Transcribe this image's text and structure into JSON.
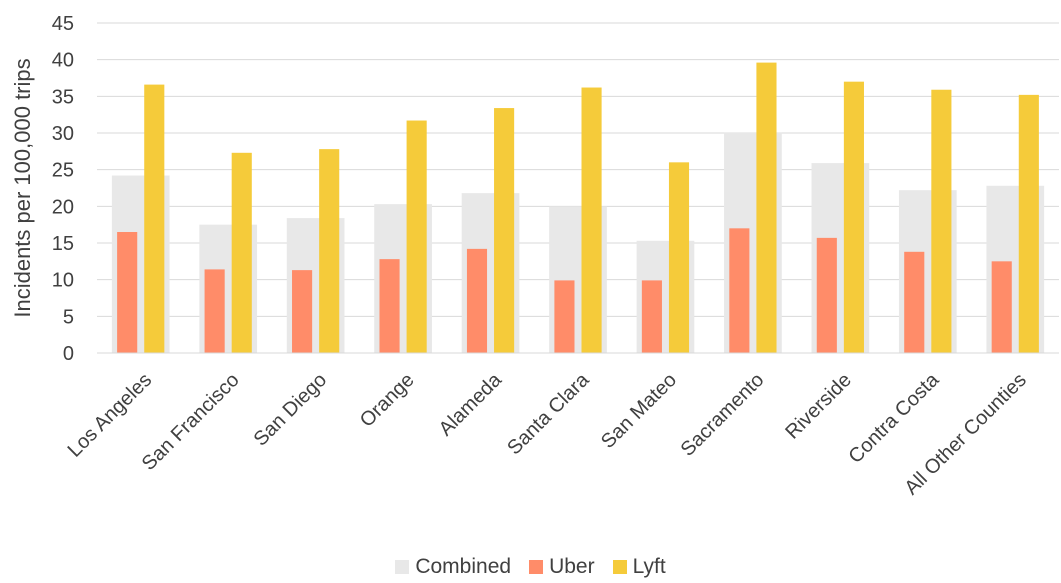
{
  "chart_data": {
    "type": "bar",
    "title": "",
    "xlabel": "",
    "ylabel": "Incidents per 100,000 trips",
    "ylim": [
      0,
      45
    ],
    "yticks": [
      0,
      5,
      10,
      15,
      20,
      25,
      30,
      35,
      40,
      45
    ],
    "grid": true,
    "legend_position": "bottom",
    "categories": [
      "Los Angeles",
      "San Francisco",
      "San Diego",
      "Orange",
      "Alameda",
      "Santa Clara",
      "San Mateo",
      "Sacramento",
      "Riverside",
      "Contra Costa",
      "All Other Counties"
    ],
    "series": [
      {
        "name": "Combined",
        "color": "#e8e8e8",
        "values": [
          24.2,
          17.5,
          18.4,
          20.3,
          21.8,
          20.0,
          15.3,
          30.1,
          25.9,
          22.2,
          22.8
        ]
      },
      {
        "name": "Uber",
        "color": "#ff8c69",
        "values": [
          16.5,
          11.4,
          11.3,
          12.8,
          14.2,
          9.9,
          9.9,
          17.0,
          15.7,
          13.8,
          12.5
        ]
      },
      {
        "name": "Lyft",
        "color": "#f5cb3a",
        "values": [
          36.6,
          27.3,
          27.8,
          31.7,
          33.4,
          36.2,
          26.0,
          39.6,
          37.0,
          35.9,
          35.2
        ]
      }
    ]
  }
}
